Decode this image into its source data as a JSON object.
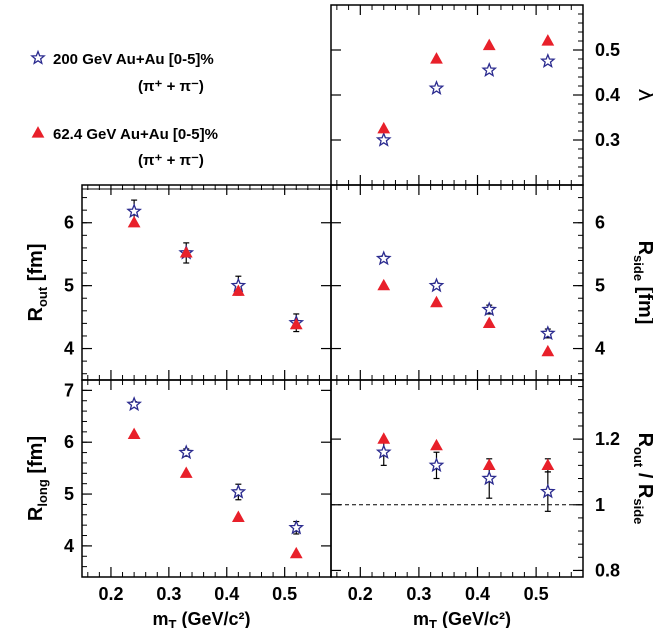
{
  "colors": {
    "star": "#2b2b8f",
    "triangle": "#e8202a",
    "axis": "#000000"
  },
  "legend": [
    {
      "marker": "star",
      "text": "200 GeV Au+Au [0-5]%",
      "sub": "(π⁺ + π⁻)"
    },
    {
      "marker": "triangle",
      "text": "62.4 GeV Au+Au [0-5]%",
      "sub": "(π⁺ + π⁻)"
    }
  ],
  "x_axis": {
    "label": "m",
    "label_sub": "T",
    "label_unit": " (GeV/c²)",
    "ticks": [
      "0.2",
      "0.3",
      "0.4",
      "0.5"
    ],
    "range": [
      0.15,
      0.58
    ]
  },
  "chart_data": [
    {
      "id": "lambda",
      "type": "scatter",
      "ylabel": "λ",
      "ylim": [
        0.2,
        0.6
      ],
      "yticks": [
        "0.3",
        "0.4",
        "0.5"
      ],
      "series": [
        {
          "name": "200 GeV Au+Au [0-5]% (π⁺ + π⁻)",
          "marker": "star",
          "x": [
            0.24,
            0.33,
            0.42,
            0.52
          ],
          "y": [
            0.3,
            0.415,
            0.455,
            0.475
          ],
          "err": [
            0,
            0,
            0,
            0
          ]
        },
        {
          "name": "62.4 GeV Au+Au [0-5]% (π⁺ + π⁻)",
          "marker": "triangle",
          "x": [
            0.24,
            0.33,
            0.42,
            0.52
          ],
          "y": [
            0.325,
            0.48,
            0.51,
            0.52
          ],
          "err": [
            0,
            0,
            0,
            0
          ]
        }
      ]
    },
    {
      "id": "rout",
      "type": "scatter",
      "ylabel": "R",
      "ylabel_sub": "out",
      "ylabel_unit": " [fm]",
      "ylim": [
        3.5,
        6.6
      ],
      "yticks": [
        "4",
        "5",
        "6"
      ],
      "series": [
        {
          "name": "200 GeV Au+Au [0-5]% (π⁺ + π⁻)",
          "marker": "star",
          "x": [
            0.24,
            0.33,
            0.42,
            0.52
          ],
          "y": [
            6.18,
            5.52,
            5.0,
            4.41
          ],
          "err": [
            0.18,
            0.16,
            0.15,
            0.14
          ]
        },
        {
          "name": "62.4 GeV Au+Au [0-5]% (π⁺ + π⁻)",
          "marker": "triangle",
          "x": [
            0.24,
            0.33,
            0.42,
            0.52
          ],
          "y": [
            6.0,
            5.52,
            4.91,
            4.38
          ],
          "err": [
            0,
            0,
            0,
            0
          ]
        }
      ]
    },
    {
      "id": "rside",
      "type": "scatter",
      "ylabel": "R",
      "ylabel_sub": "side",
      "ylabel_unit": " [fm]",
      "ylim": [
        3.5,
        6.6
      ],
      "yticks": [
        "4",
        "5",
        "6"
      ],
      "series": [
        {
          "name": "200 GeV Au+Au [0-5]% (π⁺ + π⁻)",
          "marker": "star",
          "x": [
            0.24,
            0.33,
            0.42,
            0.52
          ],
          "y": [
            5.43,
            5.0,
            4.62,
            4.24
          ],
          "err": [
            0.04,
            0.04,
            0.07,
            0.07
          ]
        },
        {
          "name": "62.4 GeV Au+Au [0-5]% (π⁺ + π⁻)",
          "marker": "triangle",
          "x": [
            0.24,
            0.33,
            0.42,
            0.52
          ],
          "y": [
            5.0,
            4.73,
            4.4,
            3.95
          ],
          "err": [
            0,
            0,
            0,
            0
          ]
        }
      ]
    },
    {
      "id": "rlong",
      "type": "scatter",
      "ylabel": "R",
      "ylabel_sub": "long",
      "ylabel_unit": " [fm]",
      "ylim": [
        3.4,
        7.2
      ],
      "yticks": [
        "4",
        "5",
        "6",
        "7"
      ],
      "series": [
        {
          "name": "200 GeV Au+Au [0-5]% (π⁺ + π⁻)",
          "marker": "star",
          "x": [
            0.24,
            0.33,
            0.42,
            0.52
          ],
          "y": [
            6.73,
            5.8,
            5.04,
            4.35
          ],
          "err": [
            0.05,
            0.07,
            0.15,
            0.12
          ]
        },
        {
          "name": "62.4 GeV Au+Au [0-5]% (π⁺ + π⁻)",
          "marker": "triangle",
          "x": [
            0.24,
            0.33,
            0.42,
            0.52
          ],
          "y": [
            6.15,
            5.4,
            4.55,
            3.85
          ],
          "err": [
            0,
            0,
            0,
            0
          ]
        }
      ]
    },
    {
      "id": "ratio",
      "type": "scatter",
      "ylabel": "R",
      "ylabel_sub": "out",
      "ylabel_mid": " / R",
      "ylabel_sub2": "side",
      "ylim": [
        0.78,
        1.38
      ],
      "yticks": [
        "0.8",
        "1",
        "1.2"
      ],
      "reference_line": 1.0,
      "series": [
        {
          "name": "200 GeV Au+Au [0-5]% (π⁺ + π⁻)",
          "marker": "star",
          "x": [
            0.24,
            0.33,
            0.42,
            0.52
          ],
          "y": [
            1.16,
            1.12,
            1.08,
            1.04
          ],
          "err": [
            0.04,
            0.04,
            0.06,
            0.06
          ]
        },
        {
          "name": "62.4 GeV Au+Au [0-5]% (π⁺ + π⁻)",
          "marker": "triangle",
          "x": [
            0.24,
            0.33,
            0.42,
            0.52
          ],
          "y": [
            1.2,
            1.18,
            1.12,
            1.12
          ],
          "err": [
            0,
            0,
            0,
            0.02
          ]
        }
      ]
    }
  ]
}
